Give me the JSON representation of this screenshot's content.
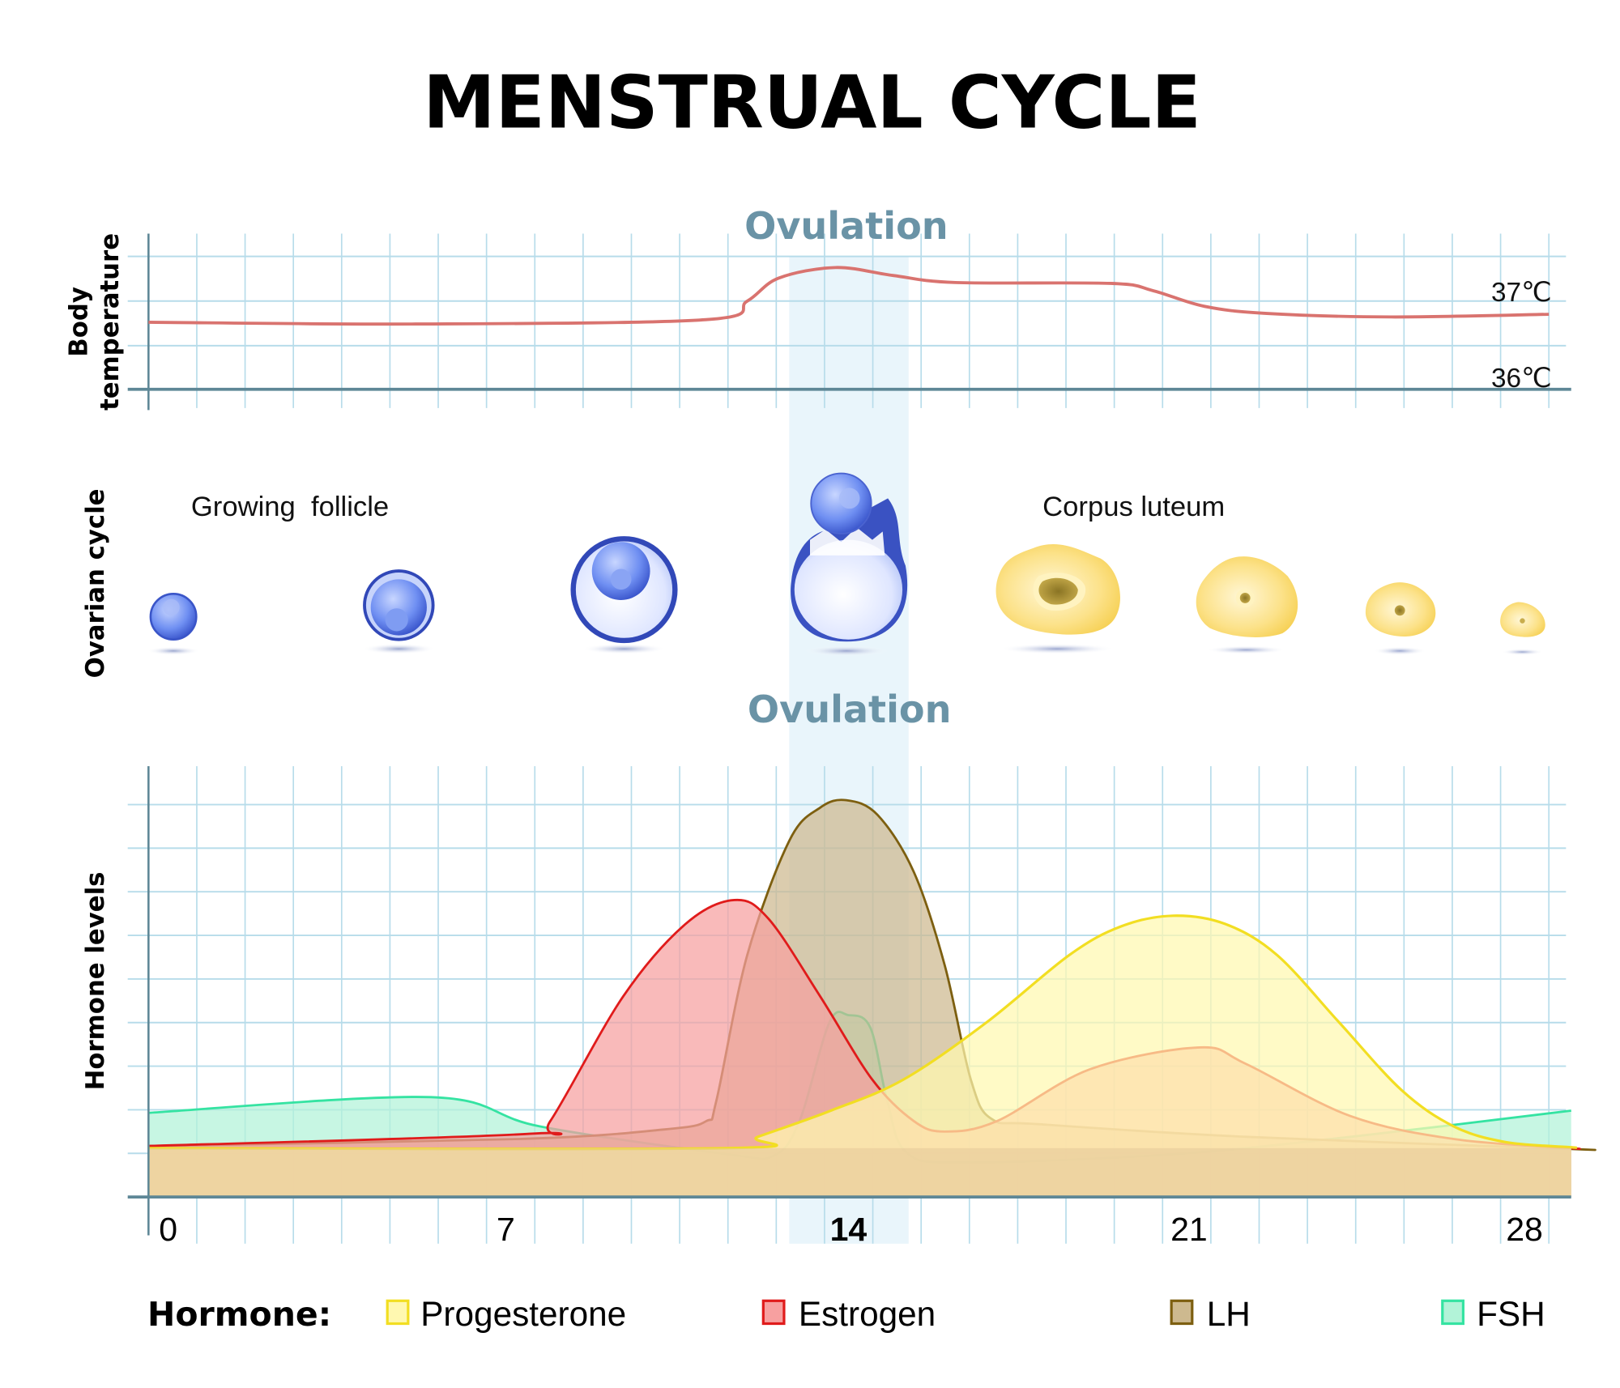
{
  "title": "MENSTRUAL CYCLE",
  "temperature_panel": {
    "ylabel_line1": "Body",
    "ylabel_line2": "temperature",
    "ovulation_label": "Ovulation",
    "tick_37": "37℃",
    "tick_36": "36℃"
  },
  "ovarian_panel": {
    "ylabel": "Ovarian cycle",
    "growing_follicle": "Growing  follicle",
    "corpus_luteum": "Corpus luteum"
  },
  "hormone_panel": {
    "ylabel": "Hormone levels",
    "ovulation_label": "Ovulation",
    "x_ticks": [
      "0",
      "7",
      "14",
      "21",
      "28"
    ]
  },
  "legend": {
    "title": "Hormone:",
    "items": [
      {
        "label": "Progesterone",
        "fill": "#fff8b0",
        "stroke": "#f2de22"
      },
      {
        "label": "Estrogen",
        "fill": "#f7a0a0",
        "stroke": "#e01b1b"
      },
      {
        "label": "LH",
        "fill": "#cdb98f",
        "stroke": "#7d5f10"
      },
      {
        "label": "FSH",
        "fill": "#b2f3d8",
        "stroke": "#35e3a2"
      }
    ]
  },
  "chart_data": [
    {
      "type": "line",
      "ylabel": "Body temperature",
      "x_range_days": [
        0,
        28
      ],
      "y_ticks": [
        "36℃",
        "37℃"
      ],
      "ovulation_band_days": [
        13,
        15.5
      ],
      "series": [
        {
          "color": "#d9736f",
          "points": [
            [
              -0.5,
              36.76
            ],
            [
              5.03,
              36.74
            ],
            [
              11.05,
              36.79
            ],
            [
              11.9,
              37.0
            ],
            [
              12.55,
              37.26
            ],
            [
              13.73,
              37.38
            ],
            [
              14.92,
              37.29
            ],
            [
              16.21,
              37.21
            ],
            [
              19.43,
              37.2
            ],
            [
              20.29,
              37.12
            ],
            [
              21.37,
              36.94
            ],
            [
              22.66,
              36.86
            ],
            [
              25.24,
              36.82
            ],
            [
              28.5,
              36.85
            ]
          ]
        }
      ]
    },
    {
      "type": "area",
      "ylabel": "Hormone levels",
      "x_ticks": [
        0,
        7,
        14,
        21,
        28
      ],
      "grid": true,
      "legend": "bottom",
      "series": [
        {
          "name": "FSH",
          "fill": "#b2f3d8",
          "stroke": "#35e3a2",
          "points": [
            [
              -0.5,
              1.93
            ],
            [
              5.35,
              2.29
            ],
            [
              7.6,
              1.62
            ],
            [
              11.5,
              0.98
            ],
            [
              12.45,
              0.95
            ],
            [
              12.98,
              1.74
            ],
            [
              13.6,
              4.0
            ],
            [
              14.0,
              4.17
            ],
            [
              14.45,
              3.88
            ],
            [
              14.8,
              2.2
            ],
            [
              15.2,
              1.02
            ],
            [
              16.4,
              0.79
            ],
            [
              20.7,
              0.98
            ],
            [
              24.4,
              1.38
            ],
            [
              29.0,
              1.98
            ]
          ]
        },
        {
          "name": "LH",
          "fill": "#cdb98f",
          "stroke": "#7d5f10",
          "points": [
            [
              -0.5,
              1.17
            ],
            [
              7.18,
              1.33
            ],
            [
              10.19,
              1.55
            ],
            [
              11.05,
              1.74
            ],
            [
              11.26,
              2.21
            ],
            [
              11.9,
              5.55
            ],
            [
              12.77,
              8.17
            ],
            [
              13.41,
              8.93
            ],
            [
              13.95,
              9.1
            ],
            [
              14.6,
              8.76
            ],
            [
              15.35,
              7.45
            ],
            [
              15.99,
              5.31
            ],
            [
              16.53,
              2.69
            ],
            [
              16.96,
              1.79
            ],
            [
              17.93,
              1.67
            ],
            [
              22.23,
              1.38
            ],
            [
              28.96,
              1.1
            ]
          ]
        },
        {
          "name": "Estrogen",
          "fill": "#f7a0a0",
          "stroke": "#e01b1b",
          "points": [
            [
              -0.5,
              1.17
            ],
            [
              7.39,
              1.45
            ],
            [
              7.82,
              1.74
            ],
            [
              9.33,
              4.6
            ],
            [
              10.62,
              6.26
            ],
            [
              11.63,
              6.81
            ],
            [
              12.34,
              6.38
            ],
            [
              13.41,
              4.6
            ],
            [
              14.49,
              2.69
            ],
            [
              15.35,
              1.74
            ],
            [
              15.99,
              1.5
            ],
            [
              17.07,
              1.74
            ],
            [
              19.0,
              2.93
            ],
            [
              21.27,
              3.43
            ],
            [
              22.23,
              3.05
            ],
            [
              24.38,
              1.86
            ],
            [
              26.53,
              1.33
            ],
            [
              28.96,
              1.12
            ]
          ]
        },
        {
          "name": "Progesterone",
          "fill": "#fff8b0",
          "stroke": "#f2de22",
          "points": [
            [
              -0.5,
              1.12
            ],
            [
              11.48,
              1.12
            ],
            [
              12.12,
              1.38
            ],
            [
              13.63,
              1.98
            ],
            [
              15.13,
              2.69
            ],
            [
              16.85,
              4.0
            ],
            [
              18.57,
              5.55
            ],
            [
              19.65,
              6.21
            ],
            [
              20.72,
              6.45
            ],
            [
              21.8,
              6.26
            ],
            [
              22.87,
              5.55
            ],
            [
              24.16,
              4.0
            ],
            [
              25.45,
              2.45
            ],
            [
              26.53,
              1.62
            ],
            [
              27.6,
              1.26
            ],
            [
              28.96,
              1.14
            ]
          ]
        }
      ]
    }
  ]
}
